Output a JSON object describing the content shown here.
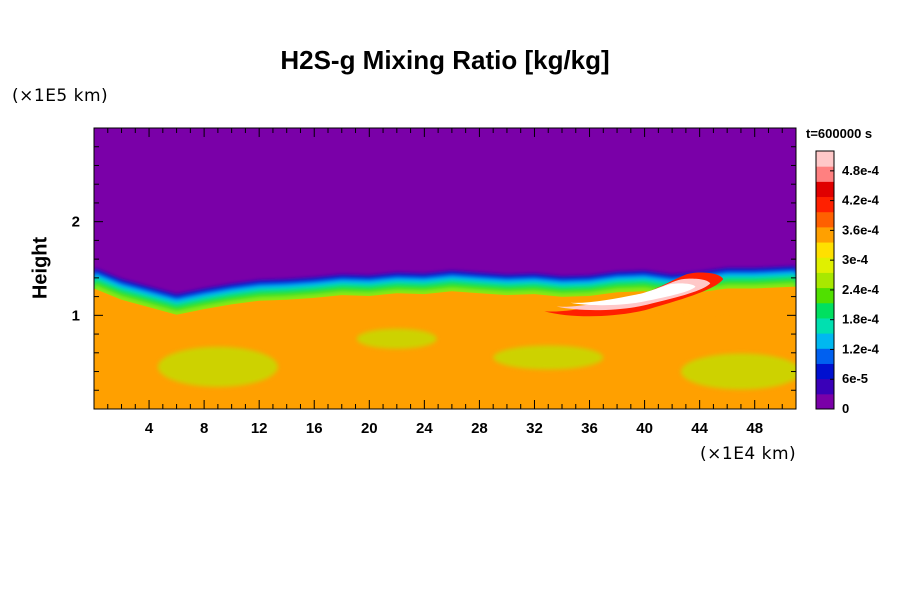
{
  "chart_data": {
    "type": "heatmap",
    "title": "H2S-g Mixing Ratio [kg/kg]",
    "ylabel": "Height",
    "x_unit_label": "(×1E4 km)",
    "y_unit_label": "(×1E5 km)",
    "time_label": "t=600000 s",
    "xlim": [
      0,
      51
    ],
    "ylim": [
      0,
      3
    ],
    "x_ticks": [
      4,
      8,
      12,
      16,
      20,
      24,
      28,
      32,
      36,
      40,
      44,
      48
    ],
    "y_ticks": [
      1,
      2
    ],
    "colorbar": {
      "range": [
        0,
        0.00052
      ],
      "ticks": [
        {
          "value": 0,
          "label": "0"
        },
        {
          "value": 6e-05,
          "label": "6e-5"
        },
        {
          "value": 0.00012,
          "label": "1.2e-4"
        },
        {
          "value": 0.00018,
          "label": "1.8e-4"
        },
        {
          "value": 0.00024,
          "label": "2.4e-4"
        },
        {
          "value": 0.0003,
          "label": "3e-4"
        },
        {
          "value": 0.00036,
          "label": "3.6e-4"
        },
        {
          "value": 0.00042,
          "label": "4.2e-4"
        },
        {
          "value": 0.00048,
          "label": "4.8e-4"
        }
      ],
      "colors": [
        "#7a00a8",
        "#3a00b8",
        "#0010d0",
        "#0060f0",
        "#00b8f0",
        "#00e0b0",
        "#00e060",
        "#50e000",
        "#a8e800",
        "#e0f000",
        "#ffe000",
        "#ffa000",
        "#ff6000",
        "#ff2000",
        "#e00000",
        "#ff8080",
        "#ffc8c8"
      ]
    },
    "fields": {
      "upper_layer_value": 0,
      "lower_layer_value": 0.00034,
      "interface_height_profile": {
        "x": [
          0,
          2,
          4,
          6,
          8,
          10,
          12,
          14,
          16,
          18,
          20,
          22,
          24,
          26,
          28,
          30,
          32,
          34,
          36,
          38,
          40,
          42,
          44,
          46,
          48,
          51
        ],
        "y": [
          1.5,
          1.38,
          1.3,
          1.22,
          1.28,
          1.33,
          1.37,
          1.38,
          1.4,
          1.43,
          1.42,
          1.45,
          1.44,
          1.47,
          1.45,
          1.43,
          1.44,
          1.41,
          1.42,
          1.46,
          1.47,
          1.43,
          1.46,
          1.5,
          1.5,
          1.52
        ]
      },
      "plume_max_value": 0.00052,
      "plume_x_range": [
        32,
        46
      ],
      "plume_y_range": [
        1.0,
        1.45
      ]
    }
  }
}
